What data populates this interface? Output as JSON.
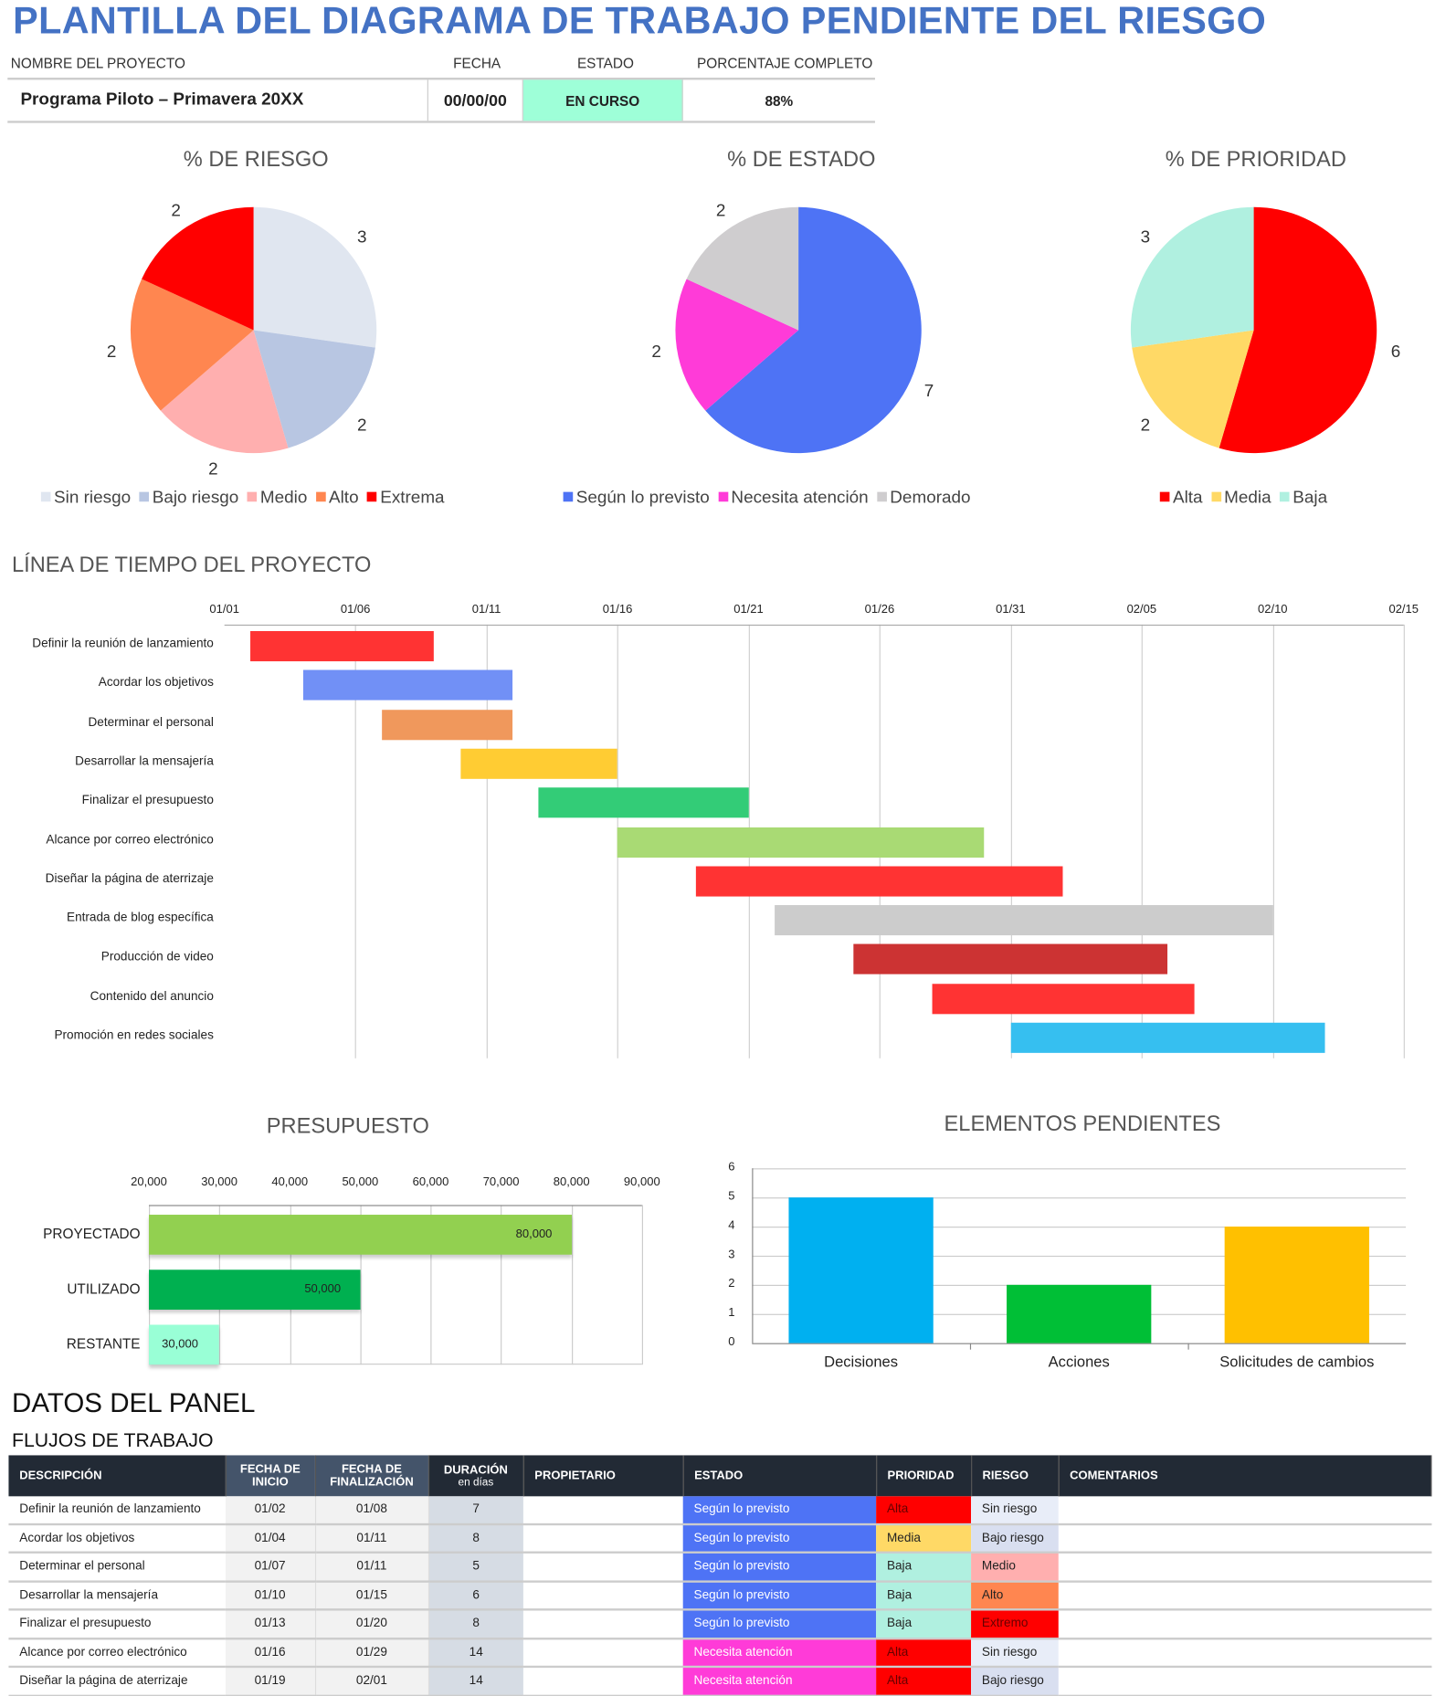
{
  "title": "PLANTILLA DEL DIAGRAMA DE TRABAJO PENDIENTE DEL RIESGO",
  "project": {
    "name_label": "NOMBRE DEL PROYECTO",
    "date_label": "FECHA",
    "status_label": "ESTADO",
    "percent_label": "PORCENTAJE COMPLETO",
    "name": "Programa Piloto – Primavera 20XX",
    "date": "00/00/00",
    "status": "EN CURSO",
    "percent": "88%",
    "status_color": "#9effd8"
  },
  "chart_data": [
    {
      "type": "pie",
      "title": "% DE RIESGO",
      "categories": [
        "Sin riesgo",
        "Bajo riesgo",
        "Medio",
        "Alto",
        "Extrema"
      ],
      "values": [
        3,
        2,
        2,
        2,
        2
      ],
      "colors": [
        "#e0e6f0",
        "#b8c6e2",
        "#ffafaf",
        "#ff8650",
        "#ff0000"
      ],
      "legend": "bottom"
    },
    {
      "type": "pie",
      "title": "% DE ESTADO",
      "categories": [
        "Según lo previsto",
        "Necesita atención",
        "Demorado"
      ],
      "values": [
        7,
        2,
        2
      ],
      "colors": [
        "#4e73f5",
        "#ff3bd8",
        "#cfcdcf"
      ],
      "legend": "bottom"
    },
    {
      "type": "pie",
      "title": "% DE PRIORIDAD",
      "categories": [
        "Alta",
        "Media",
        "Baja"
      ],
      "values": [
        6,
        2,
        3
      ],
      "colors": [
        "#ff0000",
        "#ffd966",
        "#b0f0e0"
      ],
      "legend": "bottom"
    },
    {
      "type": "bar",
      "orientation": "horizontal",
      "title": "PRESUPUESTO",
      "categories": [
        "PROYECTADO",
        "UTILIZADO",
        "RESTANTE"
      ],
      "values": [
        80000,
        50000,
        30000
      ],
      "value_labels": [
        "80,000",
        "50,000",
        "30,000"
      ],
      "colors": [
        "#92d050",
        "#00b050",
        "#99ffd6"
      ],
      "xlim": [
        20000,
        90000
      ],
      "ticks": [
        "20,000",
        "30,000",
        "40,000",
        "50,000",
        "60,000",
        "70,000",
        "80,000",
        "90,000"
      ],
      "grid": true
    },
    {
      "type": "bar",
      "title": "ELEMENTOS PENDIENTES",
      "categories": [
        "Decisiones",
        "Acciones",
        "Solicitudes de cambios"
      ],
      "values": [
        5,
        2,
        4
      ],
      "colors": [
        "#00b0f0",
        "#00bf36",
        "#ffc000"
      ],
      "ylim": [
        0,
        6
      ],
      "ticks": [
        "0",
        "1",
        "2",
        "3",
        "4",
        "5",
        "6"
      ],
      "grid": true
    }
  ],
  "timeline": {
    "title": "LÍNEA DE TIEMPO DEL PROYECTO",
    "ticks": [
      "01/01",
      "01/06",
      "01/11",
      "01/16",
      "01/21",
      "01/26",
      "01/31",
      "02/05",
      "02/10",
      "02/15"
    ],
    "tasks": [
      {
        "label": "Definir la reunión de lanzamiento",
        "start": "01/02",
        "days": 7,
        "color": "#ff3333"
      },
      {
        "label": "Acordar los objetivos",
        "start": "01/04",
        "days": 8,
        "color": "#7190f6"
      },
      {
        "label": "Determinar el personal",
        "start": "01/07",
        "days": 5,
        "color": "#f0985c"
      },
      {
        "label": "Desarrollar la mensajería",
        "start": "01/10",
        "days": 6,
        "color": "#ffcc33"
      },
      {
        "label": "Finalizar el presupuesto",
        "start": "01/13",
        "days": 8,
        "color": "#33cc77"
      },
      {
        "label": "Alcance por correo electrónico",
        "start": "01/16",
        "days": 14,
        "color": "#a9da74"
      },
      {
        "label": "Diseñar la página de aterrizaje",
        "start": "01/19",
        "days": 14,
        "color": "#ff3333"
      },
      {
        "label": "Entrada de blog específica",
        "start": "01/22",
        "days": 19,
        "color": "#cccccc"
      },
      {
        "label": "Producción de video",
        "start": "01/25",
        "days": 12,
        "color": "#cc3333"
      },
      {
        "label": "Contenido del anuncio",
        "start": "01/28",
        "days": 10,
        "color": "#ff3333"
      },
      {
        "label": "Promoción en redes sociales",
        "start": "01/31",
        "days": 12,
        "color": "#36bff0"
      }
    ]
  },
  "panel": {
    "title": "DATOS DEL PANEL",
    "subtitle": "FLUJOS DE TRABAJO",
    "headers": [
      "DESCRIPCIÓN",
      "FECHA DE INICIO",
      "FECHA DE FINALIZACIÓN",
      "DURACIÓN",
      "PROPIETARIO",
      "ESTADO",
      "PRIORIDAD",
      "RIESGO",
      "COMENTARIOS"
    ],
    "duration_sub": "en días",
    "rows": [
      [
        "Definir la reunión de lanzamiento",
        "01/02",
        "01/08",
        "7",
        "",
        "Según lo previsto",
        "Alta",
        "Sin riesgo",
        ""
      ],
      [
        "Acordar los objetivos",
        "01/04",
        "01/11",
        "8",
        "",
        "Según lo previsto",
        "Media",
        "Bajo riesgo",
        ""
      ],
      [
        "Determinar el personal",
        "01/07",
        "01/11",
        "5",
        "",
        "Según lo previsto",
        "Baja",
        "Medio",
        ""
      ],
      [
        "Desarrollar la mensajería",
        "01/10",
        "01/15",
        "6",
        "",
        "Según lo previsto",
        "Baja",
        "Alto",
        ""
      ],
      [
        "Finalizar el presupuesto",
        "01/13",
        "01/20",
        "8",
        "",
        "Según lo previsto",
        "Baja",
        "Extremo",
        ""
      ],
      [
        "Alcance por correo electrónico",
        "01/16",
        "01/29",
        "14",
        "",
        "Necesita atención",
        "Alta",
        "Sin riesgo",
        ""
      ],
      [
        "Diseñar la página de aterrizaje",
        "01/19",
        "02/01",
        "14",
        "",
        "Necesita atención",
        "Alta",
        "Bajo riesgo",
        ""
      ]
    ],
    "colors": {
      "Según lo previsto": "#4e73f5",
      "Necesita atención": "#ff3bd8",
      "Alta": "#ff0000",
      "Media": "#ffd966",
      "Baja": "#b0f0e0",
      "Sin riesgo": "#e8edf8",
      "Bajo riesgo": "#d9dff0",
      "Medio": "#ffafaf",
      "Alto": "#ff8650",
      "Extremo": "#ff0000"
    }
  }
}
